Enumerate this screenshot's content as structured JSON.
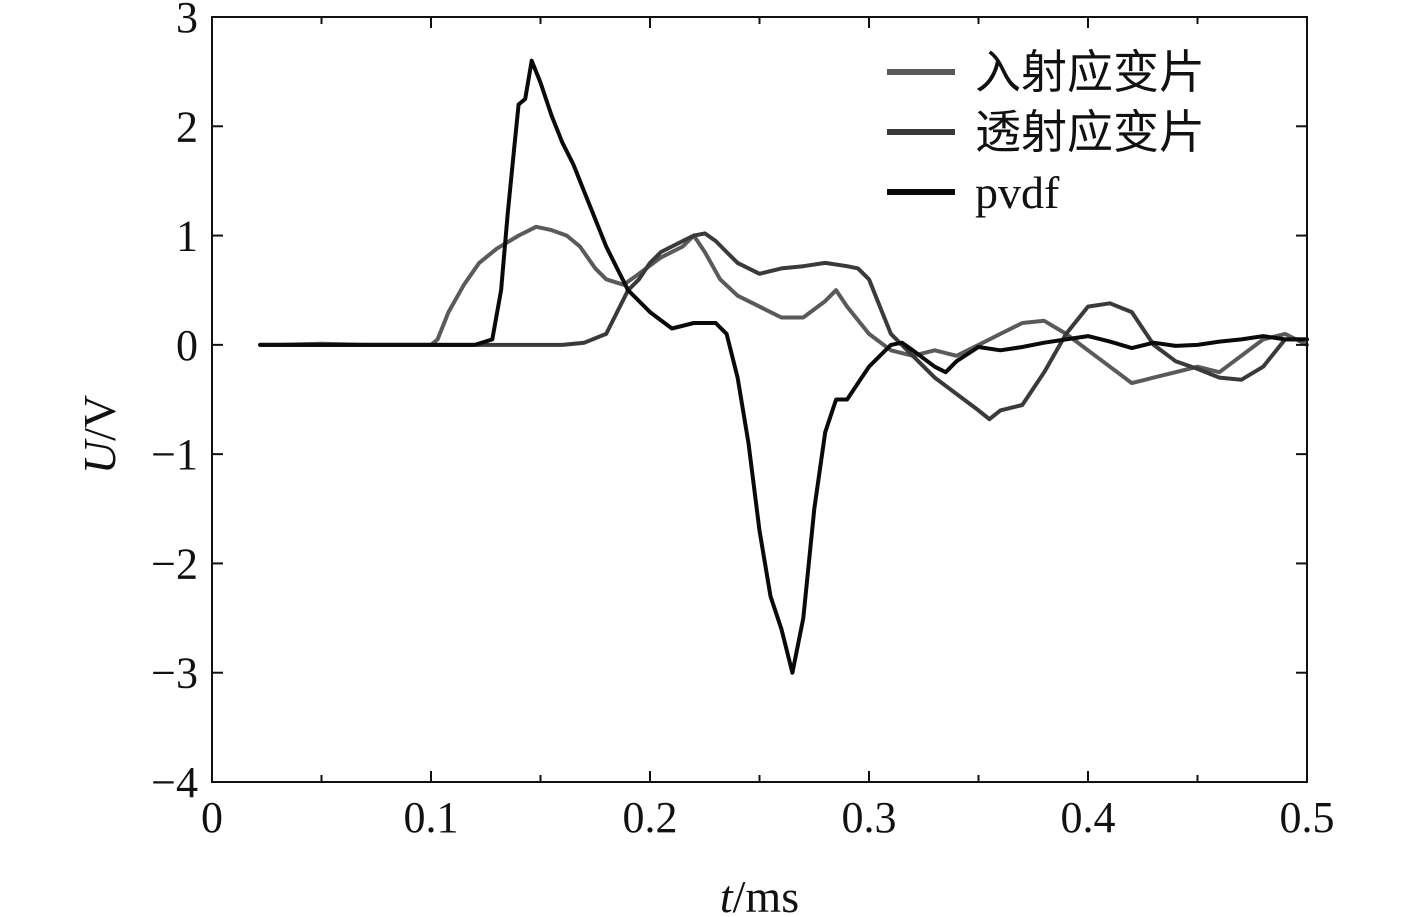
{
  "chart_data": {
    "type": "line",
    "xlabel": {
      "var": "t",
      "unit": "/ms"
    },
    "ylabel": {
      "var": "U",
      "unit": "/V"
    },
    "xlim": [
      0,
      0.5
    ],
    "ylim": [
      -4,
      3
    ],
    "xticks": [
      0,
      0.1,
      0.2,
      0.3,
      0.4,
      0.5
    ],
    "xtick_labels": [
      "0",
      "0.1",
      "0.2",
      "0.3",
      "0.4",
      "0.5"
    ],
    "yticks": [
      3,
      2,
      1,
      0,
      -1,
      -2,
      -3,
      -4
    ],
    "ytick_labels": [
      "3",
      "2",
      "1",
      "0",
      "−1",
      "−2",
      "−3",
      "−4"
    ],
    "grid": false,
    "legend": "top-right",
    "series": [
      {
        "name": "入射应变片",
        "color": "#5a5a5a",
        "points": [
          [
            0.022,
            0
          ],
          [
            0.03,
            0.0
          ],
          [
            0.05,
            0.01
          ],
          [
            0.07,
            0.0
          ],
          [
            0.09,
            0.0
          ],
          [
            0.1,
            0.0
          ],
          [
            0.103,
            0.05
          ],
          [
            0.108,
            0.3
          ],
          [
            0.115,
            0.55
          ],
          [
            0.122,
            0.75
          ],
          [
            0.13,
            0.88
          ],
          [
            0.14,
            1.0
          ],
          [
            0.148,
            1.08
          ],
          [
            0.155,
            1.05
          ],
          [
            0.162,
            1.0
          ],
          [
            0.168,
            0.9
          ],
          [
            0.175,
            0.7
          ],
          [
            0.18,
            0.6
          ],
          [
            0.188,
            0.55
          ],
          [
            0.195,
            0.65
          ],
          [
            0.205,
            0.8
          ],
          [
            0.215,
            0.9
          ],
          [
            0.22,
            1.0
          ],
          [
            0.225,
            0.85
          ],
          [
            0.232,
            0.6
          ],
          [
            0.24,
            0.45
          ],
          [
            0.25,
            0.35
          ],
          [
            0.26,
            0.25
          ],
          [
            0.27,
            0.25
          ],
          [
            0.28,
            0.4
          ],
          [
            0.285,
            0.5
          ],
          [
            0.29,
            0.35
          ],
          [
            0.3,
            0.1
          ],
          [
            0.31,
            -0.05
          ],
          [
            0.32,
            -0.1
          ],
          [
            0.33,
            -0.05
          ],
          [
            0.34,
            -0.1
          ],
          [
            0.35,
            0.0
          ],
          [
            0.36,
            0.1
          ],
          [
            0.37,
            0.2
          ],
          [
            0.38,
            0.22
          ],
          [
            0.39,
            0.1
          ],
          [
            0.4,
            -0.05
          ],
          [
            0.41,
            -0.2
          ],
          [
            0.42,
            -0.35
          ],
          [
            0.43,
            -0.3
          ],
          [
            0.44,
            -0.25
          ],
          [
            0.45,
            -0.2
          ],
          [
            0.46,
            -0.25
          ],
          [
            0.47,
            -0.1
          ],
          [
            0.48,
            0.05
          ],
          [
            0.49,
            0.1
          ],
          [
            0.5,
            0.0
          ]
        ]
      },
      {
        "name": "透射应变片",
        "color": "#3a3a3a",
        "points": [
          [
            0.022,
            0
          ],
          [
            0.05,
            0.0
          ],
          [
            0.09,
            0.0
          ],
          [
            0.12,
            0.0
          ],
          [
            0.14,
            0.0
          ],
          [
            0.16,
            0.0
          ],
          [
            0.17,
            0.02
          ],
          [
            0.18,
            0.1
          ],
          [
            0.185,
            0.3
          ],
          [
            0.19,
            0.5
          ],
          [
            0.195,
            0.6
          ],
          [
            0.2,
            0.75
          ],
          [
            0.205,
            0.85
          ],
          [
            0.21,
            0.9
          ],
          [
            0.215,
            0.95
          ],
          [
            0.22,
            1.0
          ],
          [
            0.225,
            1.02
          ],
          [
            0.23,
            0.95
          ],
          [
            0.235,
            0.85
          ],
          [
            0.24,
            0.75
          ],
          [
            0.25,
            0.65
          ],
          [
            0.26,
            0.7
          ],
          [
            0.27,
            0.72
          ],
          [
            0.28,
            0.75
          ],
          [
            0.29,
            0.72
          ],
          [
            0.295,
            0.7
          ],
          [
            0.3,
            0.6
          ],
          [
            0.305,
            0.35
          ],
          [
            0.31,
            0.1
          ],
          [
            0.32,
            -0.1
          ],
          [
            0.33,
            -0.3
          ],
          [
            0.34,
            -0.45
          ],
          [
            0.35,
            -0.6
          ],
          [
            0.355,
            -0.68
          ],
          [
            0.36,
            -0.6
          ],
          [
            0.37,
            -0.55
          ],
          [
            0.38,
            -0.25
          ],
          [
            0.39,
            0.1
          ],
          [
            0.4,
            0.35
          ],
          [
            0.41,
            0.38
          ],
          [
            0.42,
            0.3
          ],
          [
            0.43,
            0.0
          ],
          [
            0.44,
            -0.15
          ],
          [
            0.45,
            -0.22
          ],
          [
            0.46,
            -0.3
          ],
          [
            0.47,
            -0.32
          ],
          [
            0.48,
            -0.2
          ],
          [
            0.49,
            0.05
          ],
          [
            0.5,
            0.05
          ]
        ]
      },
      {
        "name": "pvdf",
        "color": "#0a0a0a",
        "points": [
          [
            0.022,
            0
          ],
          [
            0.05,
            0.0
          ],
          [
            0.09,
            0.0
          ],
          [
            0.12,
            0.0
          ],
          [
            0.128,
            0.05
          ],
          [
            0.132,
            0.5
          ],
          [
            0.135,
            1.2
          ],
          [
            0.138,
            1.8
          ],
          [
            0.14,
            2.2
          ],
          [
            0.143,
            2.25
          ],
          [
            0.146,
            2.6
          ],
          [
            0.15,
            2.4
          ],
          [
            0.155,
            2.1
          ],
          [
            0.16,
            1.85
          ],
          [
            0.165,
            1.65
          ],
          [
            0.17,
            1.4
          ],
          [
            0.175,
            1.15
          ],
          [
            0.18,
            0.9
          ],
          [
            0.185,
            0.7
          ],
          [
            0.19,
            0.5
          ],
          [
            0.2,
            0.3
          ],
          [
            0.21,
            0.15
          ],
          [
            0.22,
            0.2
          ],
          [
            0.23,
            0.2
          ],
          [
            0.235,
            0.1
          ],
          [
            0.24,
            -0.3
          ],
          [
            0.245,
            -0.9
          ],
          [
            0.25,
            -1.7
          ],
          [
            0.255,
            -2.3
          ],
          [
            0.26,
            -2.6
          ],
          [
            0.265,
            -3.0
          ],
          [
            0.27,
            -2.5
          ],
          [
            0.275,
            -1.5
          ],
          [
            0.28,
            -0.8
          ],
          [
            0.285,
            -0.5
          ],
          [
            0.29,
            -0.5
          ],
          [
            0.295,
            -0.35
          ],
          [
            0.3,
            -0.2
          ],
          [
            0.31,
            0.0
          ],
          [
            0.315,
            0.02
          ],
          [
            0.32,
            -0.05
          ],
          [
            0.33,
            -0.2
          ],
          [
            0.335,
            -0.25
          ],
          [
            0.34,
            -0.15
          ],
          [
            0.35,
            -0.02
          ],
          [
            0.36,
            -0.05
          ],
          [
            0.37,
            -0.02
          ],
          [
            0.38,
            0.02
          ],
          [
            0.39,
            0.05
          ],
          [
            0.4,
            0.08
          ],
          [
            0.41,
            0.03
          ],
          [
            0.42,
            -0.03
          ],
          [
            0.43,
            0.02
          ],
          [
            0.44,
            -0.01
          ],
          [
            0.45,
            0.0
          ],
          [
            0.46,
            0.03
          ],
          [
            0.47,
            0.05
          ],
          [
            0.48,
            0.08
          ],
          [
            0.49,
            0.05
          ],
          [
            0.5,
            0.05
          ]
        ]
      }
    ]
  }
}
